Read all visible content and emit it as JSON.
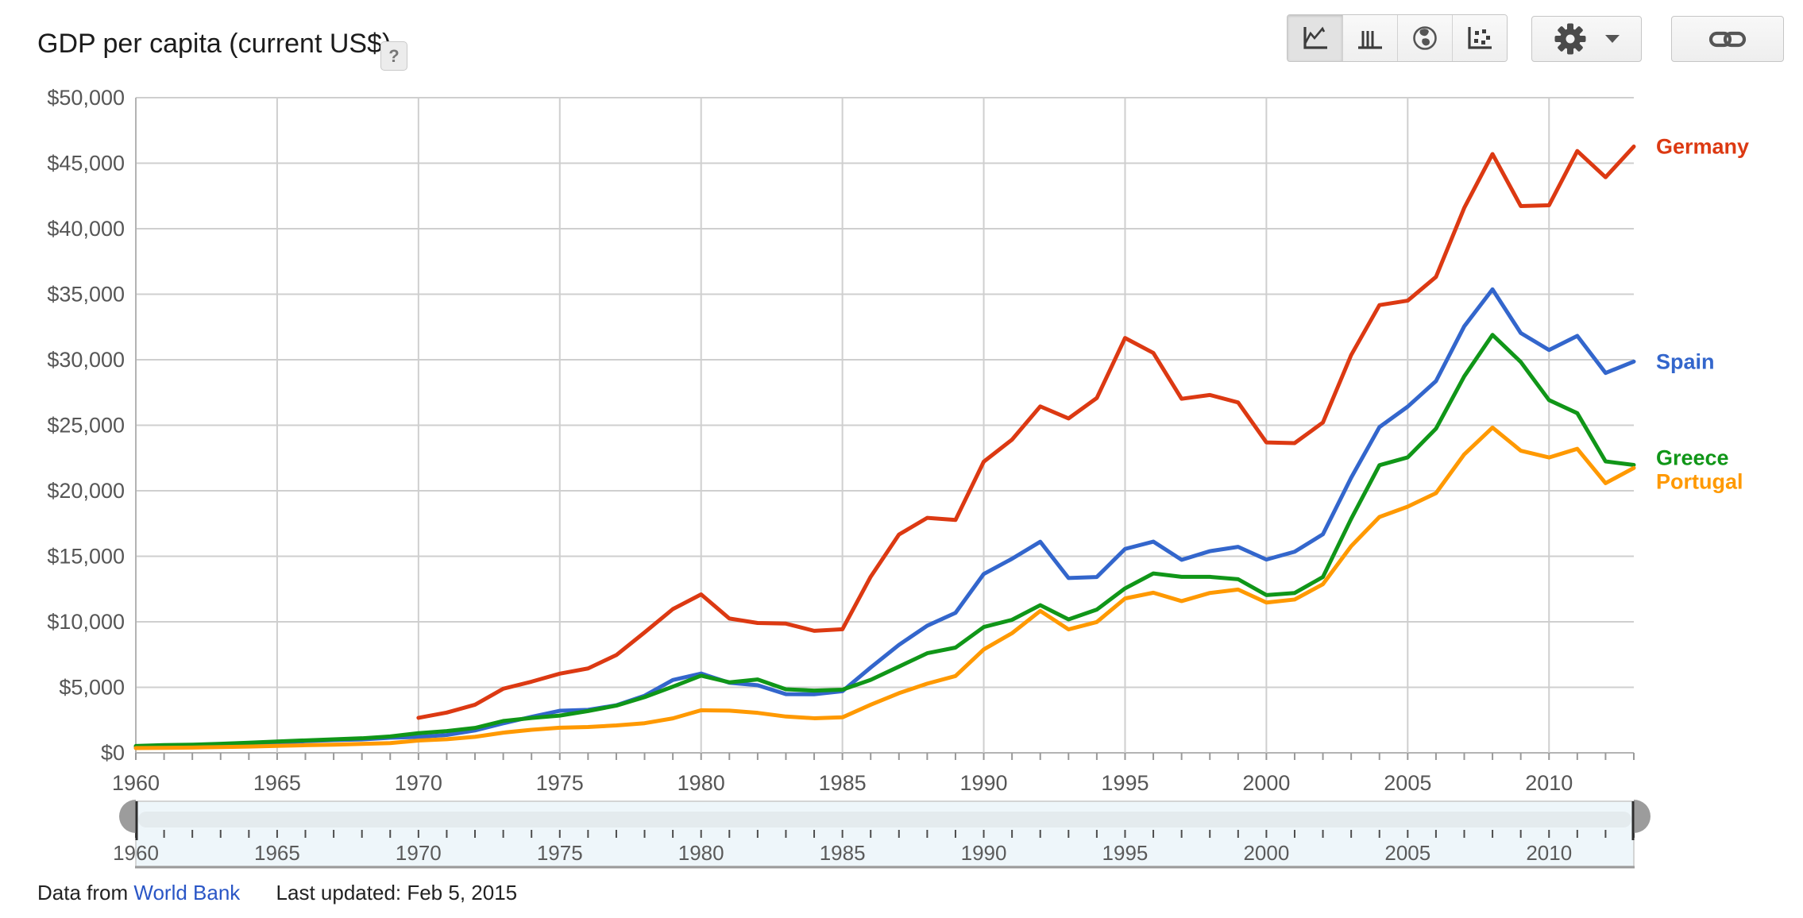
{
  "header": {
    "title": "GDP per capita (current US$)",
    "help_label": "?"
  },
  "toolbar": {
    "chart_type_buttons": [
      {
        "id": "line",
        "icon": "line-chart-icon",
        "selected": true
      },
      {
        "id": "bar",
        "icon": "bar-chart-icon",
        "selected": false
      },
      {
        "id": "map",
        "icon": "map-globe-icon",
        "selected": false
      },
      {
        "id": "scatter",
        "icon": "scatter-chart-icon",
        "selected": false
      }
    ],
    "settings_button": {
      "icon": "gear-icon",
      "has_dropdown": true,
      "dropdown_icon": "caret-down-icon"
    },
    "link_button": {
      "icon": "link-icon"
    }
  },
  "footer": {
    "prefix": "Data from",
    "link": "World Bank",
    "last_updated": "Last updated: Feb 5, 2015"
  },
  "chart_data": {
    "type": "line",
    "title": "GDP per capita (current US$)",
    "xlabel": "",
    "ylabel": "",
    "xlim": [
      1960,
      2013
    ],
    "ylim": [
      0,
      50000
    ],
    "grid": true,
    "legend_position": "right",
    "x_ticks": [
      1960,
      1965,
      1970,
      1975,
      1980,
      1985,
      1990,
      1995,
      2000,
      2005,
      2010
    ],
    "x_minor_tick_every": 1,
    "y_ticks": [
      0,
      5000,
      10000,
      15000,
      20000,
      25000,
      30000,
      35000,
      40000,
      45000,
      50000
    ],
    "y_tick_labels": [
      "$0",
      "$5,000",
      "$10,000",
      "$15,000",
      "$20,000",
      "$25,000",
      "$30,000",
      "$35,000",
      "$40,000",
      "$45,000",
      "$50,000"
    ],
    "years": [
      1960,
      1961,
      1962,
      1963,
      1964,
      1965,
      1966,
      1967,
      1968,
      1969,
      1970,
      1971,
      1972,
      1973,
      1974,
      1975,
      1976,
      1977,
      1978,
      1979,
      1980,
      1981,
      1982,
      1983,
      1984,
      1985,
      1986,
      1987,
      1988,
      1989,
      1990,
      1991,
      1992,
      1993,
      1994,
      1995,
      1996,
      1997,
      1998,
      1999,
      2000,
      2001,
      2002,
      2003,
      2004,
      2005,
      2006,
      2007,
      2008,
      2009,
      2010,
      2011,
      2012,
      2013
    ],
    "series": [
      {
        "name": "Germany",
        "color": "#dc3912",
        "label_dy": 0,
        "values": [
          null,
          null,
          null,
          null,
          null,
          null,
          null,
          null,
          null,
          null,
          2670,
          3070,
          3670,
          4890,
          5430,
          6040,
          6440,
          7460,
          9190,
          10970,
          12090,
          10250,
          9910,
          9860,
          9310,
          9430,
          13440,
          16660,
          17930,
          17770,
          22220,
          23900,
          26440,
          25520,
          27080,
          31660,
          30520,
          27020,
          27310,
          26740,
          23690,
          23640,
          25210,
          30360,
          34170,
          34510,
          36320,
          41590,
          45700,
          41730,
          41790,
          45930,
          43930,
          46270
        ]
      },
      {
        "name": "Spain",
        "color": "#3366cc",
        "label_dy": 0,
        "values": [
          400,
          450,
          520,
          610,
          680,
          780,
          890,
          970,
          1020,
          1150,
          1210,
          1360,
          1710,
          2250,
          2750,
          3210,
          3280,
          3630,
          4360,
          5560,
          6050,
          5350,
          5160,
          4480,
          4470,
          4700,
          6510,
          8240,
          9700,
          10680,
          13650,
          14810,
          16110,
          13340,
          13420,
          15560,
          16120,
          14730,
          15390,
          15720,
          14750,
          15350,
          16680,
          21000,
          24860,
          26420,
          28370,
          32550,
          35370,
          32040,
          30740,
          31820,
          28990,
          29860
        ]
      },
      {
        "name": "Greece",
        "color": "#109618",
        "label_dy": -9,
        "values": [
          520,
          590,
          620,
          690,
          770,
          860,
          950,
          1030,
          1110,
          1250,
          1500,
          1660,
          1900,
          2430,
          2660,
          2840,
          3190,
          3600,
          4250,
          5050,
          5890,
          5380,
          5600,
          4850,
          4750,
          4820,
          5570,
          6580,
          7600,
          8030,
          9600,
          10150,
          11270,
          10180,
          10930,
          12550,
          13690,
          13430,
          13430,
          13250,
          12040,
          12200,
          13420,
          17860,
          21950,
          22550,
          24740,
          28730,
          31900,
          29830,
          26920,
          25920,
          22240,
          21970
        ]
      },
      {
        "name": "Portugal",
        "color": "#ff9900",
        "label_dy": 17,
        "values": [
          360,
          380,
          400,
          440,
          480,
          530,
          580,
          620,
          680,
          740,
          940,
          1040,
          1220,
          1540,
          1760,
          1920,
          1970,
          2090,
          2260,
          2630,
          3250,
          3220,
          3050,
          2770,
          2640,
          2710,
          3670,
          4550,
          5280,
          5860,
          7890,
          9130,
          10830,
          9420,
          9980,
          11780,
          12220,
          11580,
          12200,
          12460,
          11470,
          11700,
          12870,
          15770,
          18000,
          18790,
          19820,
          22780,
          24820,
          23060,
          22540,
          23200,
          20580,
          21740
        ]
      }
    ]
  },
  "slider": {
    "min": 1960,
    "max": 2013,
    "selected_start": 1960,
    "selected_end": 2013,
    "labels": [
      1960,
      1965,
      1970,
      1975,
      1980,
      1985,
      1990,
      1995,
      2000,
      2005,
      2010
    ],
    "minor_tick_every": 1
  },
  "style": {
    "grid_color": "#cfcfcf",
    "axis_color": "#b3b3b3",
    "tick_color": "#999999",
    "tick_label_color": "#565656",
    "slider_track_color": "#eef6fa",
    "slider_stripe_color": "#e4ebee",
    "slider_handle_color": "#9c9c9c",
    "link_color": "#2a56c6"
  }
}
